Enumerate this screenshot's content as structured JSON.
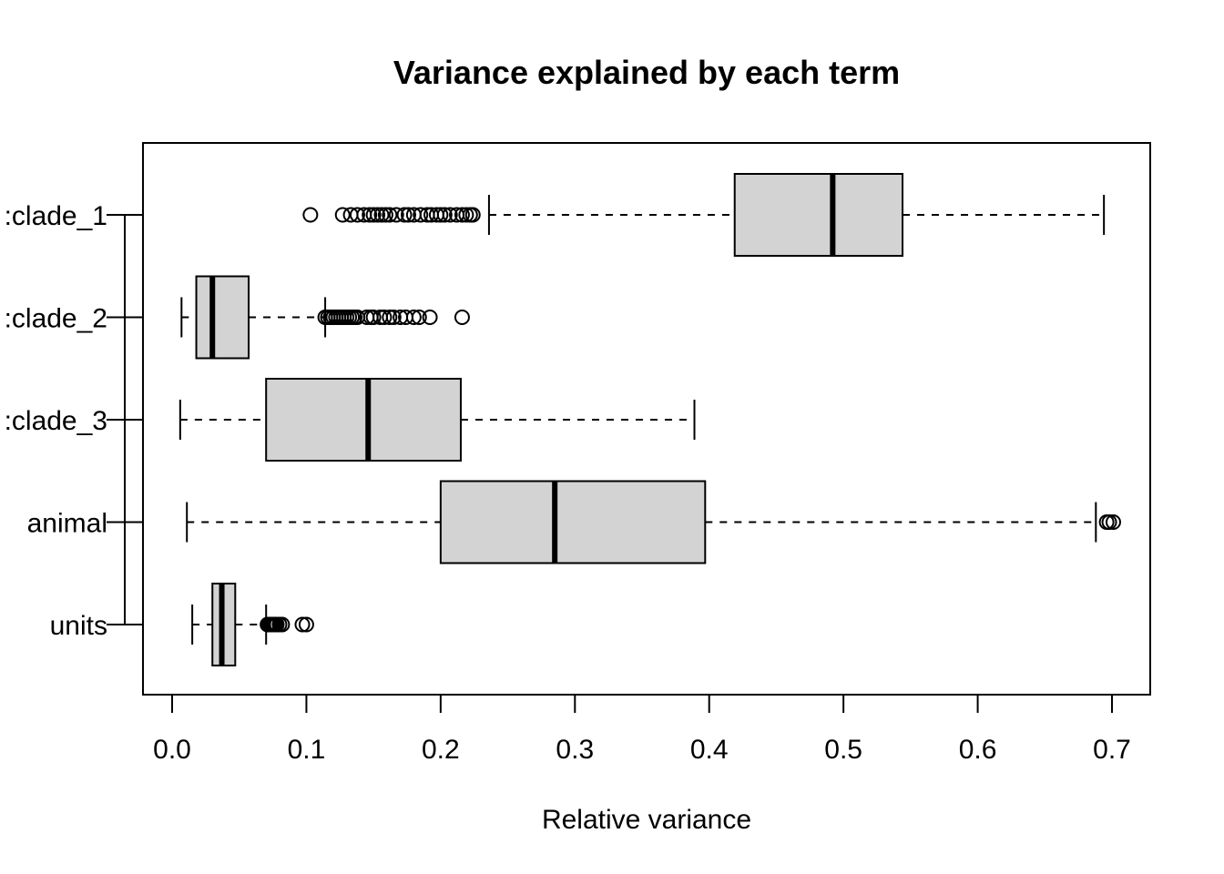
{
  "chart_data": {
    "type": "boxplot",
    "orientation": "horizontal",
    "title": "Variance explained by each term",
    "xlabel": "Relative variance",
    "ylabel": "",
    "xlim": [
      0.0,
      0.7
    ],
    "xticks": [
      "0.0",
      "0.1",
      "0.2",
      "0.3",
      "0.4",
      "0.5",
      "0.6",
      "0.7"
    ],
    "grid": false,
    "legend": "none",
    "box_fill": "#d3d3d3",
    "line_color": "#000000",
    "categories": [
      "units",
      "animal",
      ":clade_3",
      ":clade_2",
      ":clade_1"
    ],
    "boxes": [
      {
        "label": "units",
        "whisker_low": 0.015,
        "q1": 0.03,
        "median": 0.037,
        "q3": 0.047,
        "whisker_high": 0.07,
        "outliers": [
          0.071,
          0.072,
          0.073,
          0.074,
          0.075,
          0.076,
          0.077,
          0.078,
          0.08,
          0.082,
          0.097,
          0.1
        ]
      },
      {
        "label": "animal",
        "whisker_low": 0.011,
        "q1": 0.2,
        "median": 0.285,
        "q3": 0.397,
        "whisker_high": 0.688,
        "outliers": [
          0.696,
          0.698,
          0.701
        ]
      },
      {
        "label": ":clade_3",
        "whisker_low": 0.006,
        "q1": 0.07,
        "median": 0.146,
        "q3": 0.215,
        "whisker_high": 0.389,
        "outliers": []
      },
      {
        "label": ":clade_2",
        "whisker_low": 0.007,
        "q1": 0.018,
        "median": 0.03,
        "q3": 0.057,
        "whisker_high": 0.114,
        "outliers": [
          0.114,
          0.116,
          0.118,
          0.12,
          0.122,
          0.124,
          0.126,
          0.128,
          0.13,
          0.132,
          0.134,
          0.136,
          0.138,
          0.145,
          0.148,
          0.15,
          0.155,
          0.158,
          0.162,
          0.165,
          0.17,
          0.174,
          0.18,
          0.184,
          0.192,
          0.216
        ]
      },
      {
        "label": ":clade_1",
        "whisker_low": 0.236,
        "q1": 0.419,
        "median": 0.492,
        "q3": 0.544,
        "whisker_high": 0.694,
        "outliers": [
          0.103,
          0.127,
          0.133,
          0.138,
          0.143,
          0.147,
          0.15,
          0.153,
          0.156,
          0.159,
          0.162,
          0.167,
          0.173,
          0.176,
          0.18,
          0.185,
          0.19,
          0.193,
          0.197,
          0.2,
          0.203,
          0.207,
          0.212,
          0.216,
          0.219,
          0.222,
          0.224
        ]
      }
    ]
  }
}
